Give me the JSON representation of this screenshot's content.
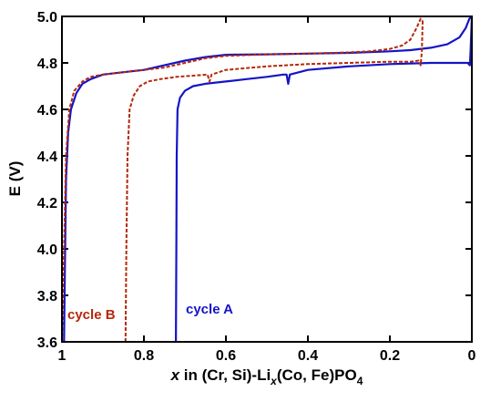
{
  "chart_data": {
    "type": "line",
    "ylabel": "E (V)",
    "xlabel": {
      "prefix": "x",
      "mid": " in (Cr, Si)-Li",
      "sub1": "x",
      "mid2": "(Co, Fe)PO",
      "sub2": "4"
    },
    "xlim": [
      1.0,
      0.0
    ],
    "ylim": [
      3.6,
      5.0
    ],
    "x_ticks": [
      1,
      0.8,
      0.6,
      0.4,
      0.2,
      0
    ],
    "x_tick_labels": [
      "1",
      "0.8",
      "0.6",
      "0.4",
      "0.2",
      "0"
    ],
    "y_ticks": [
      3.6,
      3.8,
      4.0,
      4.2,
      4.4,
      4.6,
      4.8,
      5.0
    ],
    "y_tick_labels": [
      "3.6",
      "3.8",
      "4.0",
      "4.2",
      "4.4",
      "4.6",
      "4.8",
      "5.0"
    ],
    "grid": false,
    "series": [
      {
        "name": "cycle A",
        "color": "#1414c8",
        "style": "solid",
        "segments": [
          [
            [
              0.995,
              3.6
            ],
            [
              0.993,
              3.9
            ],
            [
              0.99,
              4.3
            ],
            [
              0.985,
              4.5
            ],
            [
              0.978,
              4.6
            ],
            [
              0.965,
              4.67
            ],
            [
              0.95,
              4.71
            ],
            [
              0.93,
              4.73
            ],
            [
              0.9,
              4.75
            ],
            [
              0.85,
              4.76
            ],
            [
              0.8,
              4.77
            ],
            [
              0.75,
              4.79
            ],
            [
              0.7,
              4.81
            ],
            [
              0.65,
              4.825
            ],
            [
              0.6,
              4.835
            ],
            [
              0.5,
              4.837
            ],
            [
              0.4,
              4.84
            ],
            [
              0.3,
              4.843
            ],
            [
              0.2,
              4.85
            ],
            [
              0.15,
              4.855
            ],
            [
              0.1,
              4.865
            ],
            [
              0.06,
              4.88
            ],
            [
              0.03,
              4.91
            ],
            [
              0.015,
              4.95
            ],
            [
              0.006,
              4.99
            ],
            [
              0.0,
              5.0
            ]
          ],
          [
            [
              0.722,
              3.6
            ],
            [
              0.721,
              4.0
            ],
            [
              0.72,
              4.4
            ],
            [
              0.718,
              4.6
            ],
            [
              0.712,
              4.65
            ],
            [
              0.7,
              4.68
            ],
            [
              0.68,
              4.7
            ],
            [
              0.65,
              4.71
            ],
            [
              0.6,
              4.72
            ],
            [
              0.55,
              4.73
            ],
            [
              0.5,
              4.74
            ],
            [
              0.46,
              4.75
            ],
            [
              0.452,
              4.75
            ],
            [
              0.448,
              4.71
            ],
            [
              0.444,
              4.75
            ],
            [
              0.4,
              4.77
            ],
            [
              0.3,
              4.785
            ],
            [
              0.2,
              4.795
            ],
            [
              0.1,
              4.8
            ],
            [
              0.05,
              4.8
            ],
            [
              0.01,
              4.8
            ],
            [
              0.005,
              4.79
            ],
            [
              0.003,
              4.85
            ],
            [
              0.0,
              5.0
            ]
          ]
        ]
      },
      {
        "name": "cycle B",
        "color": "#b4280a",
        "style": "dashed",
        "segments": [
          [
            [
              1.0,
              3.6
            ],
            [
              0.995,
              4.0
            ],
            [
              0.99,
              4.4
            ],
            [
              0.982,
              4.6
            ],
            [
              0.97,
              4.68
            ],
            [
              0.95,
              4.72
            ],
            [
              0.93,
              4.74
            ],
            [
              0.9,
              4.75
            ],
            [
              0.85,
              4.76
            ],
            [
              0.8,
              4.77
            ],
            [
              0.75,
              4.78
            ],
            [
              0.7,
              4.8
            ],
            [
              0.65,
              4.82
            ],
            [
              0.6,
              4.83
            ],
            [
              0.5,
              4.837
            ],
            [
              0.4,
              4.84
            ],
            [
              0.3,
              4.845
            ],
            [
              0.25,
              4.85
            ],
            [
              0.2,
              4.86
            ],
            [
              0.17,
              4.875
            ],
            [
              0.15,
              4.9
            ],
            [
              0.135,
              4.95
            ],
            [
              0.125,
              4.99
            ],
            [
              0.12,
              4.98
            ]
          ],
          [
            [
              0.845,
              3.6
            ],
            [
              0.843,
              4.0
            ],
            [
              0.84,
              4.4
            ],
            [
              0.835,
              4.6
            ],
            [
              0.825,
              4.66
            ],
            [
              0.81,
              4.7
            ],
            [
              0.79,
              4.72
            ],
            [
              0.76,
              4.73
            ],
            [
              0.72,
              4.74
            ],
            [
              0.68,
              4.745
            ],
            [
              0.645,
              4.75
            ],
            [
              0.64,
              4.72
            ],
            [
              0.635,
              4.75
            ],
            [
              0.6,
              4.77
            ],
            [
              0.5,
              4.785
            ],
            [
              0.4,
              4.795
            ],
            [
              0.3,
              4.8
            ],
            [
              0.2,
              4.805
            ],
            [
              0.15,
              4.805
            ],
            [
              0.13,
              4.81
            ],
            [
              0.125,
              4.79
            ],
            [
              0.122,
              4.85
            ],
            [
              0.12,
              4.98
            ]
          ]
        ]
      }
    ]
  }
}
